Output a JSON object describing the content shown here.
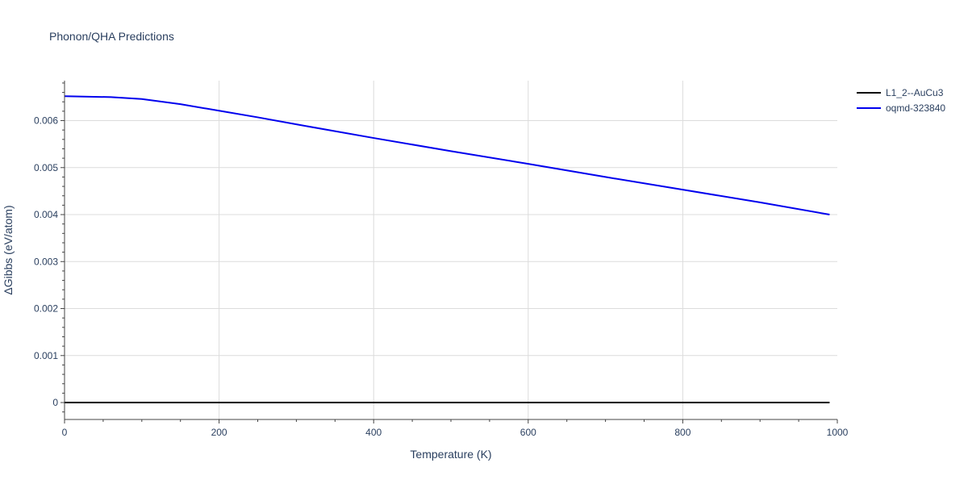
{
  "chart_data": {
    "type": "line",
    "title": "Phonon/QHA Predictions",
    "xlabel": "Temperature (K)",
    "ylabel": "ΔGibbs (eV/atom)",
    "xlim": [
      0,
      1000
    ],
    "ylim": [
      -0.00036,
      0.00685
    ],
    "x_ticks": [
      0,
      200,
      400,
      600,
      800,
      1000
    ],
    "x_tick_labels": [
      "0",
      "200",
      "400",
      "600",
      "800",
      "1000"
    ],
    "y_ticks": [
      0,
      0.001,
      0.002,
      0.003,
      0.004,
      0.005,
      0.006
    ],
    "y_tick_labels": [
      "0",
      "0.001",
      "0.002",
      "0.003",
      "0.004",
      "0.005",
      "0.006"
    ],
    "grid": true,
    "legend_position": "top-right",
    "series": [
      {
        "name": "L1_2--AuCu3",
        "color": "#000000",
        "x": [
          0,
          990
        ],
        "y": [
          0,
          0
        ]
      },
      {
        "name": "oqmd-323840",
        "color": "#0000ee",
        "x": [
          0,
          60,
          100,
          150,
          200,
          250,
          300,
          400,
          500,
          600,
          700,
          800,
          900,
          990
        ],
        "y": [
          0.00652,
          0.0065,
          0.00646,
          0.00635,
          0.00621,
          0.00607,
          0.00592,
          0.00563,
          0.00535,
          0.00508,
          0.0048,
          0.00453,
          0.00426,
          0.004
        ]
      }
    ]
  }
}
